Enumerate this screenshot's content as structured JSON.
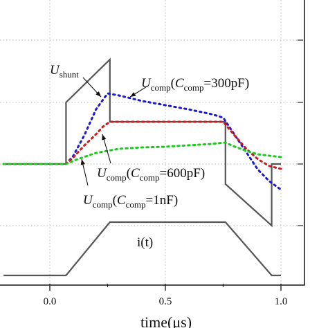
{
  "chart_data": {
    "type": "line",
    "xlabel": "time(μs)",
    "xlim": [
      -0.2,
      1.2
    ],
    "x_ticks": [
      0.0,
      0.5,
      1.0
    ],
    "x_tick_labels": [
      "0.0",
      "0.5",
      "1.0"
    ],
    "grid": true,
    "series": [
      {
        "name": "U_shunt",
        "color": "#555555",
        "style": "solid",
        "x": [
          -0.2,
          0.07,
          0.07,
          0.26,
          0.26,
          0.76,
          0.76,
          0.96,
          0.96,
          1.0
        ],
        "y": [
          237,
          237,
          148,
          86,
          176,
          176,
          266,
          326,
          237,
          237
        ]
      },
      {
        "name": "U_comp(C_comp=300pF)",
        "color": "#1a1acc",
        "style": "dotted",
        "x": [
          -0.2,
          0.07,
          0.1,
          0.15,
          0.2,
          0.25,
          0.3,
          0.4,
          0.5,
          0.6,
          0.7,
          0.75,
          0.8,
          0.85,
          0.9,
          0.95,
          1.0
        ],
        "y": [
          237,
          237,
          226,
          195,
          158,
          135,
          138,
          146,
          152,
          158,
          165,
          170,
          195,
          220,
          245,
          262,
          274
        ]
      },
      {
        "name": "U_comp(C_comp=600pF)",
        "color": "#cc1a1a",
        "style": "dotted",
        "x": [
          -0.2,
          0.07,
          0.1,
          0.15,
          0.2,
          0.23,
          0.26,
          0.5,
          0.75,
          0.8,
          0.85,
          0.9,
          0.95,
          1.0
        ],
        "y": [
          237,
          237,
          228,
          210,
          194,
          183,
          176,
          176,
          176,
          196,
          215,
          230,
          240,
          244
        ]
      },
      {
        "name": "U_comp(C_comp=1nF)",
        "color": "#1aca1a",
        "style": "dotted",
        "x": [
          -0.2,
          0.07,
          0.12,
          0.2,
          0.3,
          0.4,
          0.5,
          0.6,
          0.7,
          0.76,
          0.8,
          0.85,
          0.9,
          1.0
        ],
        "y": [
          237,
          237,
          230,
          221,
          215,
          213,
          212,
          210,
          208,
          206,
          212,
          218,
          223,
          227
        ]
      },
      {
        "name": "i(t)",
        "color": "#555555",
        "style": "solid",
        "x": [
          -0.2,
          0.07,
          0.26,
          0.76,
          0.96,
          1.0
        ],
        "y": [
          398,
          398,
          321,
          321,
          398,
          398
        ]
      }
    ],
    "annotations": [
      {
        "id": "ushunt",
        "main": "U",
        "sub": "shunt",
        "tail": ""
      },
      {
        "id": "c300",
        "main": "U",
        "sub": "comp",
        "mid": "(C",
        "sub2": "comp",
        "tail": "=300pF)"
      },
      {
        "id": "c600",
        "main": "U",
        "sub": "comp",
        "mid": "(C",
        "sub2": "comp",
        "tail": "=600pF)"
      },
      {
        "id": "c1n",
        "main": "U",
        "sub": "comp",
        "mid": "(C",
        "sub2": "comp",
        "tail": "=1nF)"
      },
      {
        "id": "it",
        "main": "i(t)"
      }
    ]
  }
}
